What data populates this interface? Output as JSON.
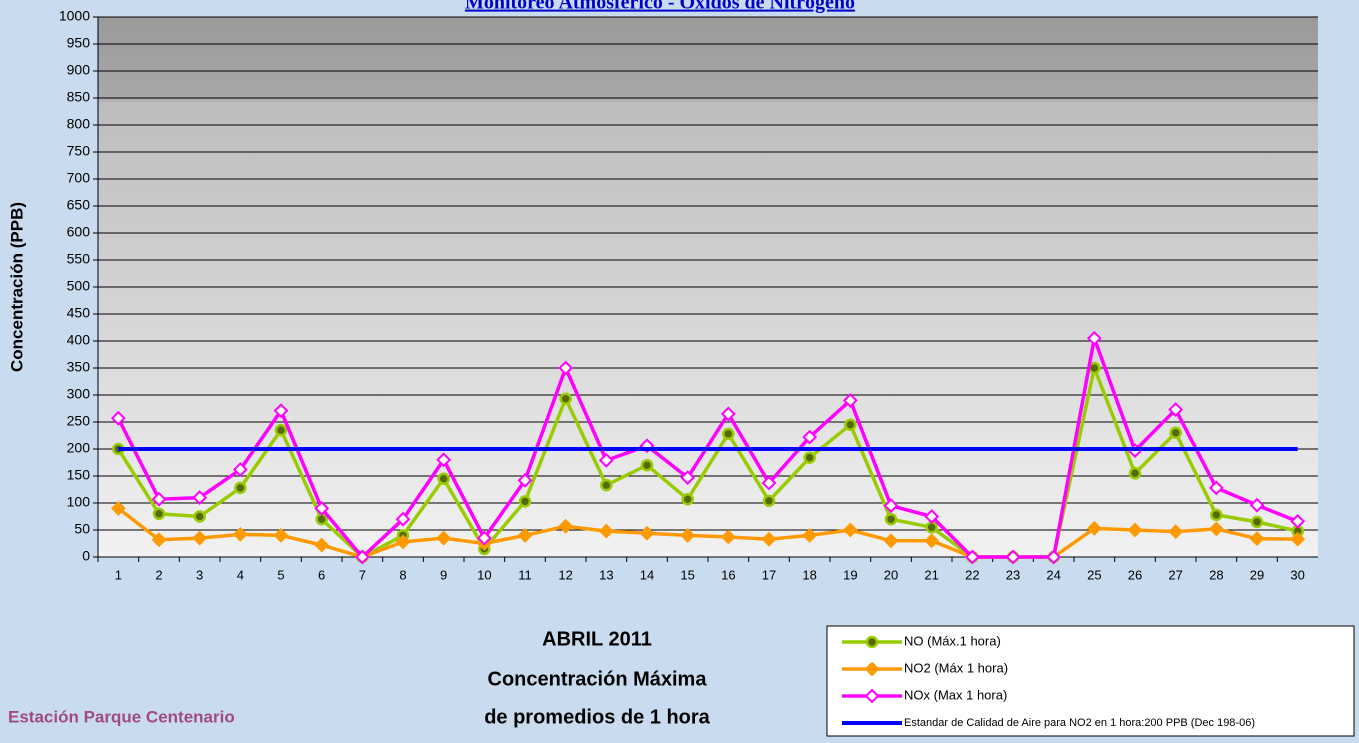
{
  "chart_data": {
    "type": "line",
    "title": "Monitoreo Atmosférico - Óxidos de Nitrógeno",
    "y_label": "Concentración  (PPB)",
    "subtitle_lines": [
      "ABRIL 2011",
      "Concentración Máxima",
      "de promedios de 1 hora"
    ],
    "station": "Estación Parque Centenario",
    "categories": [
      "1",
      "2",
      "3",
      "4",
      "5",
      "6",
      "7",
      "8",
      "9",
      "10",
      "11",
      "12",
      "13",
      "14",
      "15",
      "16",
      "17",
      "18",
      "19",
      "20",
      "21",
      "22",
      "23",
      "24",
      "25",
      "26",
      "27",
      "28",
      "29",
      "30"
    ],
    "series": [
      {
        "name": "NO (Máx.1 hora)",
        "color": "#99cc00",
        "marker": "circle",
        "values": [
          200,
          80,
          75,
          128,
          235,
          70,
          0,
          40,
          145,
          15,
          103,
          293,
          133,
          170,
          107,
          228,
          104,
          184,
          245,
          70,
          55,
          0,
          0,
          0,
          350,
          155,
          230,
          78,
          65,
          48
        ]
      },
      {
        "name": "NO2 (Máx 1 hora)",
        "color": "#ff9900",
        "marker": "diamond",
        "values": [
          90,
          32,
          35,
          42,
          40,
          22,
          0,
          28,
          35,
          25,
          40,
          57,
          48,
          44,
          40,
          37,
          33,
          40,
          50,
          30,
          30,
          0,
          0,
          0,
          53,
          50,
          47,
          52,
          34,
          33
        ]
      },
      {
        "name": "NOx (Max 1 hora)",
        "color": "#ff00ff",
        "marker": "diamond-open",
        "values": [
          257,
          107,
          110,
          162,
          271,
          90,
          0,
          70,
          180,
          35,
          142,
          350,
          179,
          206,
          147,
          265,
          137,
          222,
          290,
          95,
          75,
          0,
          0,
          0,
          405,
          197,
          273,
          128,
          96,
          66
        ]
      },
      {
        "name": "Estandar de Calidad de Aire para NO2 en 1 hora:200 PPB (Dec 198-06)",
        "color": "#0000ff",
        "marker": "none",
        "values": [
          200,
          200,
          200,
          200,
          200,
          200,
          200,
          200,
          200,
          200,
          200,
          200,
          200,
          200,
          200,
          200,
          200,
          200,
          200,
          200,
          200,
          200,
          200,
          200,
          200,
          200,
          200,
          200,
          200,
          200
        ]
      }
    ],
    "ylim": [
      0,
      1000
    ],
    "yticks": [
      0,
      50,
      100,
      150,
      200,
      250,
      300,
      350,
      400,
      450,
      500,
      550,
      600,
      650,
      700,
      750,
      800,
      850,
      900,
      950,
      1000
    ],
    "grid": true
  }
}
